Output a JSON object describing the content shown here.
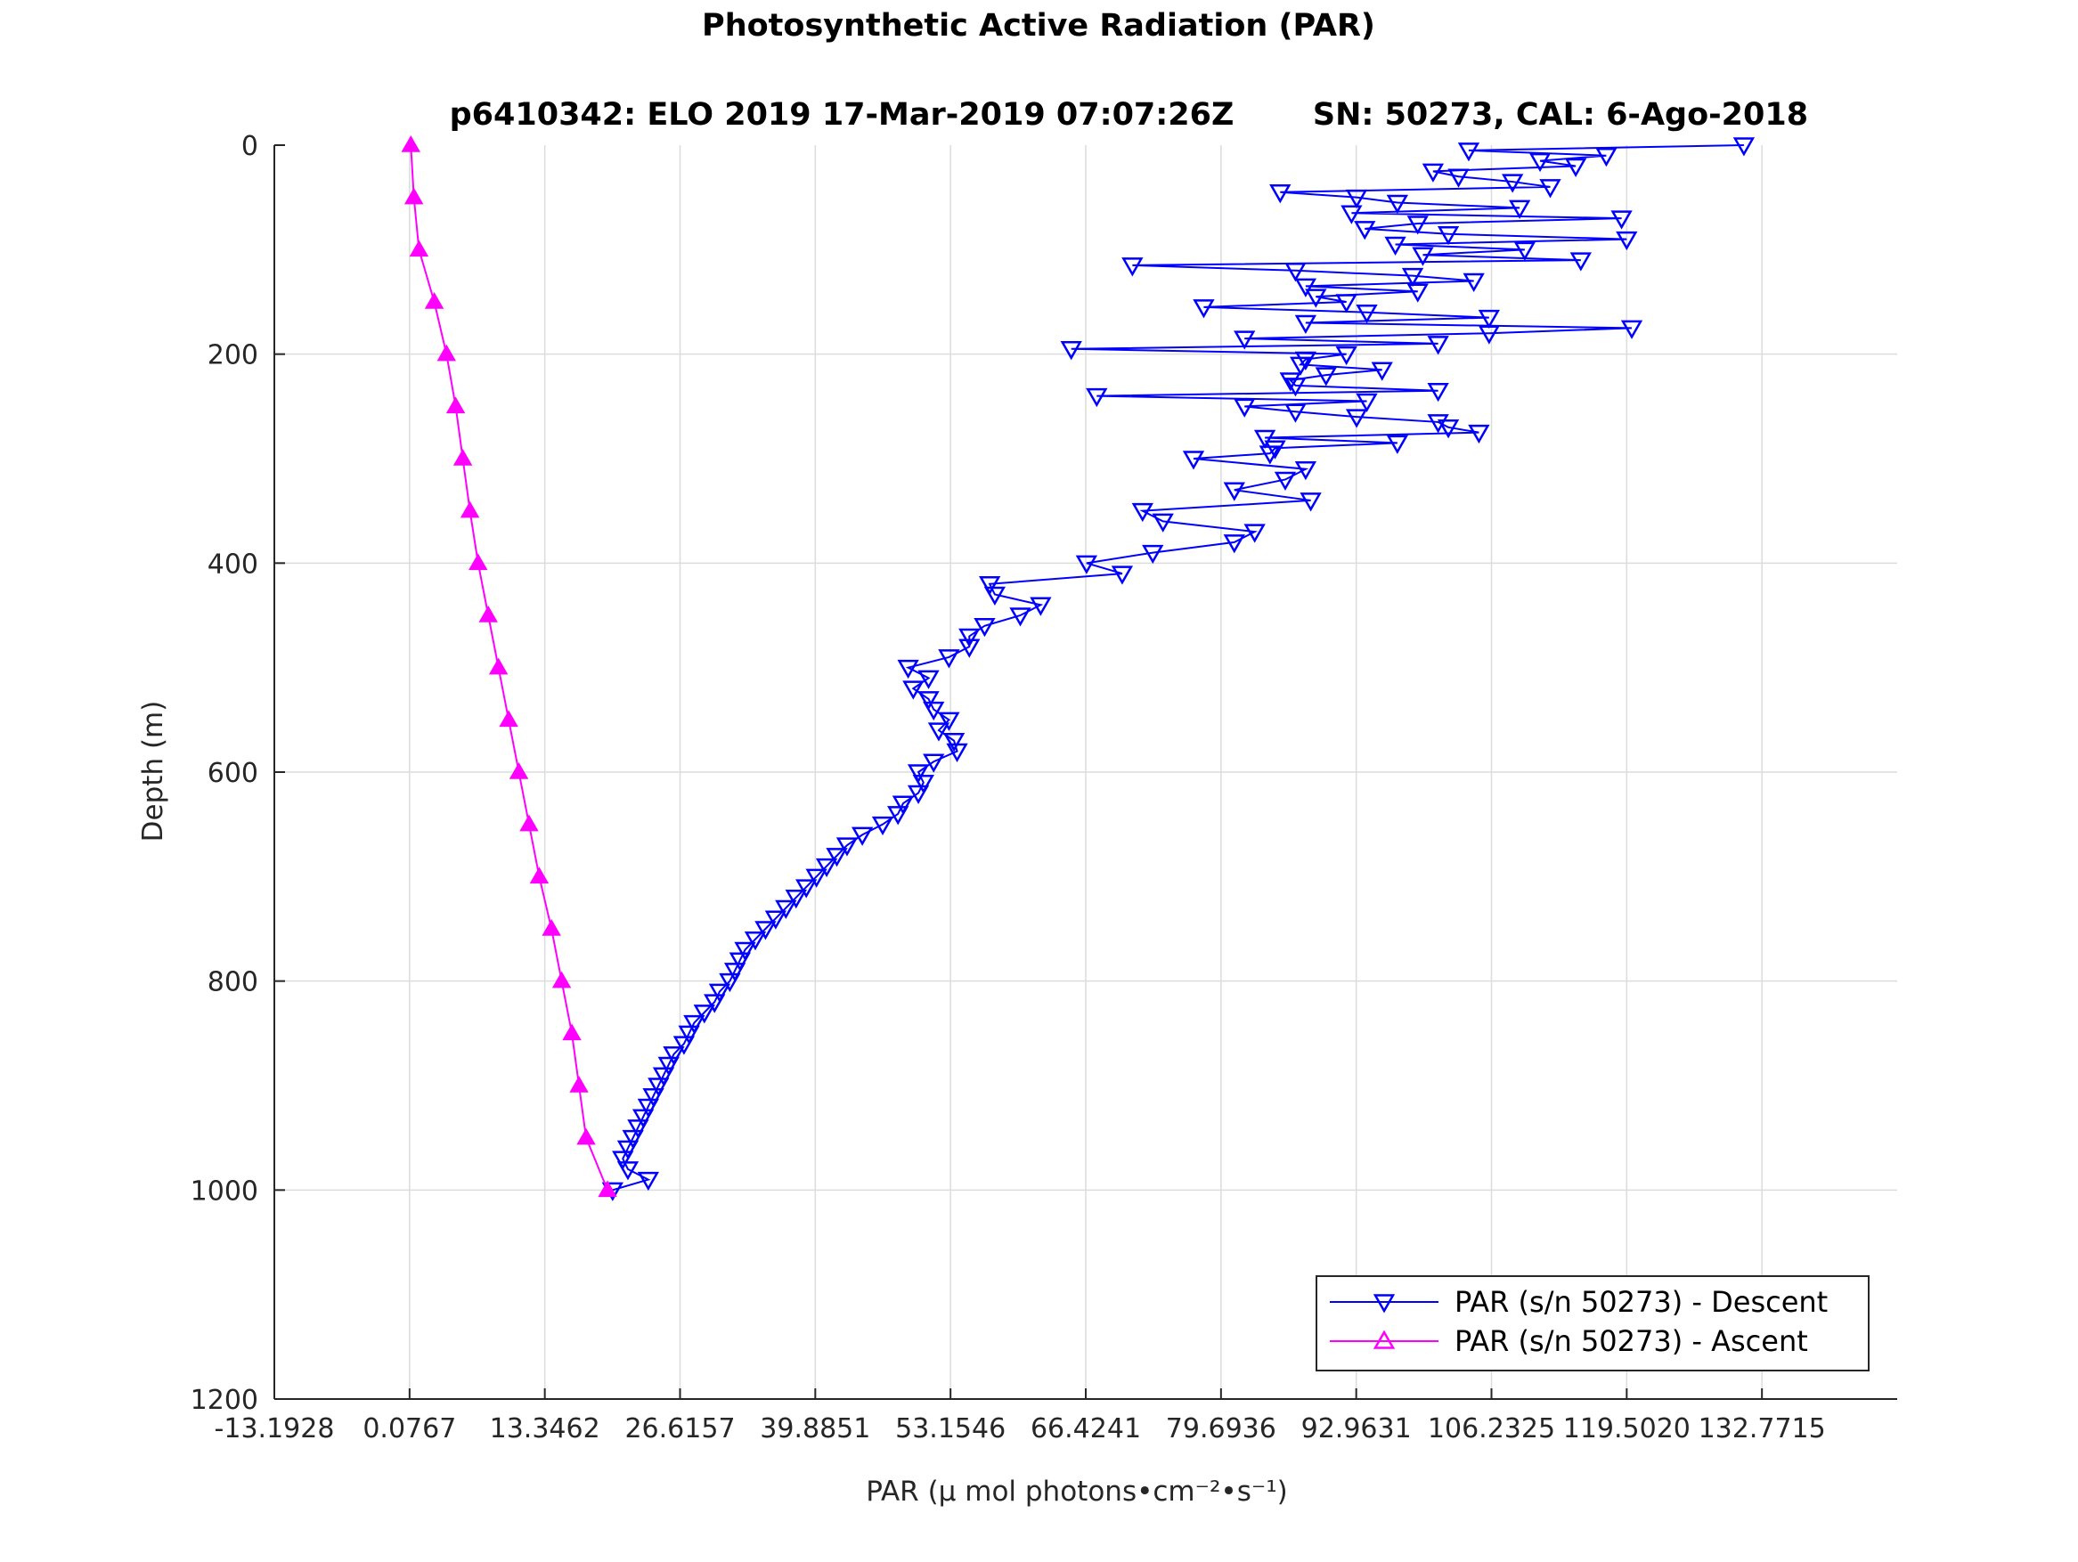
{
  "figure": {
    "title": "Photosynthetic Active Radiation (PAR)",
    "subtitle_left": "p6410342: ELO 2019 17-Mar-2019 07:07:26Z",
    "subtitle_right": "SN: 50273, CAL: 6-Ago-2018"
  },
  "chart_data": {
    "type": "line",
    "title": "Photosynthetic Active Radiation (PAR)",
    "subtitle": "p6410342: ELO 2019 17-Mar-2019 07:07:26Z SN: 50273, CAL: 6-Ago-2018",
    "xlabel": "PAR (μ mol photons•cm⁻²•s⁻¹)",
    "ylabel": "Depth (m)",
    "xlim": [
      -13.1928,
      146.041
    ],
    "ylim": [
      0,
      1200
    ],
    "y_reversed": true,
    "grid": true,
    "legend_position": "bottom-right",
    "x_ticks": [
      "-13.1928",
      "0.0767",
      "13.3462",
      "26.6157",
      "39.8851",
      "53.1546",
      "66.4241",
      "79.6936",
      "92.9631",
      "106.2325",
      "119.5020",
      "132.7715"
    ],
    "x_tick_values": [
      -13.1928,
      0.0767,
      13.3462,
      26.6157,
      39.8851,
      53.1546,
      66.4241,
      79.6936,
      92.9631,
      106.2325,
      119.502,
      132.7715
    ],
    "y_ticks": [
      "0",
      "200",
      "400",
      "600",
      "800",
      "1000",
      "1200"
    ],
    "y_tick_values": [
      0,
      200,
      400,
      600,
      800,
      1000,
      1200
    ],
    "colors": {
      "descent": "#0000ff",
      "ascent": "#ff00ff",
      "grid": "#dcdcdc",
      "axis": "#262626"
    },
    "series": [
      {
        "name": "PAR (s/n 50273) - Descent",
        "marker": "triangle-down",
        "color": "#0000ff",
        "depth": [
          0,
          5,
          10,
          15,
          20,
          25,
          30,
          35,
          40,
          45,
          50,
          55,
          60,
          65,
          70,
          75,
          80,
          85,
          90,
          95,
          100,
          105,
          110,
          115,
          120,
          125,
          130,
          135,
          140,
          145,
          150,
          155,
          160,
          165,
          170,
          175,
          180,
          185,
          190,
          195,
          200,
          205,
          210,
          215,
          220,
          225,
          230,
          235,
          240,
          245,
          250,
          255,
          260,
          265,
          270,
          275,
          280,
          285,
          290,
          295,
          300,
          310,
          320,
          330,
          340,
          350,
          360,
          370,
          380,
          390,
          400,
          410,
          420,
          430,
          440,
          450,
          460,
          470,
          480,
          490,
          500,
          510,
          520,
          530,
          540,
          550,
          560,
          570,
          580,
          590,
          600,
          610,
          620,
          630,
          640,
          650,
          660,
          670,
          680,
          690,
          700,
          710,
          720,
          730,
          740,
          750,
          760,
          770,
          780,
          790,
          800,
          810,
          820,
          830,
          840,
          850,
          860,
          870,
          880,
          890,
          900,
          910,
          920,
          930,
          940,
          950,
          960,
          970,
          980,
          990,
          1000
        ],
        "values": [
          131.0,
          104.0,
          117.5,
          111.0,
          114.5,
          100.5,
          103.0,
          108.3,
          112.0,
          85.5,
          93.0,
          97.0,
          109.0,
          92.5,
          119.0,
          99.0,
          93.8,
          102.0,
          119.5,
          96.8,
          109.5,
          99.5,
          115.0,
          71.0,
          87.0,
          98.5,
          104.5,
          88.0,
          99.0,
          89.0,
          92.0,
          78.0,
          94.0,
          106.0,
          88.0,
          120.0,
          106.0,
          82.0,
          101.0,
          65.0,
          92.0,
          88.0,
          87.5,
          95.5,
          90.0,
          86.5,
          87.0,
          101.0,
          67.5,
          94.0,
          82.0,
          87.0,
          93.0,
          101.0,
          102.0,
          105.0,
          84.0,
          97.0,
          85.0,
          84.5,
          77.0,
          88.0,
          86.0,
          81.0,
          88.5,
          72.0,
          74.0,
          83.0,
          81.0,
          73.0,
          66.5,
          70.0,
          57.0,
          57.5,
          62.0,
          60.0,
          56.5,
          55.0,
          55.0,
          53.0,
          49.0,
          51.0,
          49.5,
          51.0,
          51.5,
          53.0,
          52.0,
          53.5,
          53.8,
          51.5,
          50.0,
          50.5,
          50.0,
          48.5,
          48.0,
          46.5,
          44.5,
          43.0,
          42.0,
          41.0,
          40.0,
          39.0,
          38.0,
          37.0,
          36.0,
          35.0,
          34.0,
          33.0,
          32.5,
          32.0,
          31.5,
          30.5,
          30.0,
          29.0,
          28.0,
          27.5,
          27.0,
          26.0,
          25.5,
          25.0,
          24.5,
          24.0,
          23.5,
          23.0,
          22.5,
          22.0,
          21.5,
          21.0,
          21.5,
          23.5,
          20.0
        ]
      },
      {
        "name": "PAR (s/n 50273) - Ascent",
        "marker": "triangle-up",
        "color": "#ff00ff",
        "depth": [
          0,
          50,
          100,
          150,
          200,
          250,
          300,
          350,
          400,
          450,
          500,
          550,
          600,
          650,
          700,
          750,
          800,
          850,
          900,
          950,
          1000
        ],
        "values": [
          0.2,
          0.5,
          1.0,
          2.5,
          3.7,
          4.6,
          5.3,
          6.0,
          6.8,
          7.8,
          8.8,
          9.8,
          10.8,
          11.8,
          12.8,
          14.0,
          15.0,
          16.0,
          16.7,
          17.4,
          19.5
        ]
      }
    ]
  }
}
